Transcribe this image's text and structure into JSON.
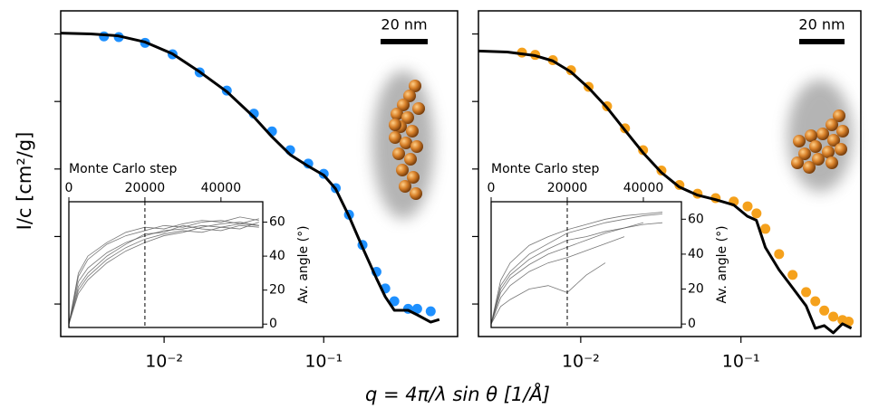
{
  "figure": {
    "xlabel": "q = 4π/λ sin θ  [1/Å]",
    "ylabel": "I/c  [cm²/g]"
  },
  "chart_data": [
    {
      "type": "scatter",
      "xscale": "log",
      "yscale": "log",
      "xlim": [
        0.00225,
        0.69
      ],
      "ylim": [
        3.3e-05,
        2.2
      ],
      "xticks": [
        {
          "value": 0.01,
          "label": "10⁻²"
        },
        {
          "value": 0.1,
          "label": "10⁻¹"
        }
      ],
      "yticks": [
        1,
        0.1,
        0.01,
        0.001,
        0.0001
      ],
      "scale_bar": "20 nm",
      "series": [
        {
          "type": "scatter",
          "color": "#1e90ff",
          "x": [
            0.0042,
            0.0052,
            0.0076,
            0.0113,
            0.0167,
            0.0247,
            0.0365,
            0.0474,
            0.0616,
            0.08,
            0.1,
            0.119,
            0.144,
            0.175,
            0.214,
            0.243,
            0.277,
            0.338,
            0.385,
            0.468
          ],
          "values": [
            0.92,
            0.9,
            0.74,
            0.5,
            0.27,
            0.145,
            0.066,
            0.036,
            0.019,
            0.012,
            0.0085,
            0.0052,
            0.0021,
            0.00075,
            0.0003,
            0.00017,
            0.00011,
            8.5e-05,
            8.5e-05,
            7.8e-05
          ]
        },
        {
          "type": "line",
          "color": "#000000",
          "x": [
            0.00225,
            0.00347,
            0.00513,
            0.0076,
            0.01125,
            0.0167,
            0.0247,
            0.0365,
            0.0474,
            0.0616,
            0.08,
            0.1,
            0.1186,
            0.144,
            0.175,
            0.214,
            0.243,
            0.277,
            0.338,
            0.385,
            0.468,
            0.53
          ],
          "values": [
            1.03,
            1.0,
            0.94,
            0.76,
            0.51,
            0.275,
            0.14,
            0.059,
            0.03,
            0.0163,
            0.011,
            0.0081,
            0.0051,
            0.002,
            0.00069,
            0.00024,
            0.000128,
            8.07e-05,
            8.07e-05,
            6.92e-05,
            5.4e-05,
            5.9e-05
          ]
        }
      ],
      "inset": {
        "type": "line",
        "xlabel": "Monte Carlo step",
        "ylabel": "Av. angle (°)",
        "xlim": [
          0,
          51000
        ],
        "xticks": [
          0,
          20000,
          40000
        ],
        "ylim": [
          -2,
          72
        ],
        "yticks": [
          0,
          20,
          40,
          60
        ],
        "vline": 20000,
        "color": "#555555",
        "x": [
          0,
          2500,
          5000,
          10000,
          15000,
          20000,
          25000,
          30000,
          35000,
          40000,
          45000,
          50000
        ],
        "series": [
          {
            "values": [
              0,
              25,
              33,
              42,
              48,
              52,
              55,
              56,
              58,
              57,
              59,
              58
            ]
          },
          {
            "values": [
              0,
              20,
              28,
              38,
              45,
              50,
              53,
              55,
              54,
              57,
              56,
              60
            ]
          },
          {
            "values": [
              0,
              28,
              38,
              47,
              52,
              55,
              58,
              57,
              60,
              61,
              59,
              62
            ]
          },
          {
            "values": [
              0,
              22,
              30,
              40,
              47,
              53,
              54,
              58,
              56,
              55,
              58,
              57
            ]
          },
          {
            "values": [
              0,
              18,
              26,
              36,
              43,
              48,
              52,
              54,
              57,
              59,
              60,
              58
            ]
          },
          {
            "values": [
              0,
              30,
              40,
              48,
              54,
              57,
              56,
              59,
              61,
              60,
              63,
              61
            ]
          }
        ]
      }
    },
    {
      "type": "scatter",
      "xscale": "log",
      "yscale": "log",
      "xlim": [
        0.0023,
        0.56
      ],
      "ylim": [
        3.3e-05,
        2.2
      ],
      "xticks": [
        {
          "value": 0.01,
          "label": "10⁻²"
        },
        {
          "value": 0.1,
          "label": "10⁻¹"
        }
      ],
      "yticks": [
        1,
        0.1,
        0.01,
        0.001,
        0.0001
      ],
      "scale_bar": "20 nm",
      "series": [
        {
          "type": "scatter",
          "color": "#f5a11c",
          "x": [
            0.0043,
            0.0052,
            0.0067,
            0.0087,
            0.0112,
            0.0146,
            0.0189,
            0.0245,
            0.0319,
            0.0413,
            0.0536,
            0.0695,
            0.0902,
            0.11,
            0.125,
            0.142,
            0.173,
            0.21,
            0.255,
            0.291,
            0.331,
            0.377,
            0.43,
            0.47
          ],
          "values": [
            0.53,
            0.49,
            0.41,
            0.29,
            0.165,
            0.085,
            0.04,
            0.019,
            0.0095,
            0.0058,
            0.0043,
            0.0037,
            0.0033,
            0.0028,
            0.0022,
            0.0013,
            0.00055,
            0.00027,
            0.00015,
            0.00011,
            8e-05,
            6.5e-05,
            5.8e-05,
            5.5e-05
          ]
        },
        {
          "type": "line",
          "color": "#000000",
          "x": [
            0.0023,
            0.00348,
            0.00515,
            0.00668,
            0.00867,
            0.01124,
            0.0146,
            0.0189,
            0.0245,
            0.0319,
            0.0413,
            0.0536,
            0.0695,
            0.0902,
            0.1096,
            0.1248,
            0.142,
            0.173,
            0.21,
            0.255,
            0.291,
            0.331,
            0.377,
            0.43,
            0.489
          ],
          "values": [
            0.56,
            0.54,
            0.48,
            0.4,
            0.275,
            0.158,
            0.081,
            0.0374,
            0.0174,
            0.00885,
            0.0054,
            0.0041,
            0.00352,
            0.00293,
            0.002,
            0.00174,
            0.00069,
            0.00032,
            0.000174,
            9.4e-05,
            4.37e-05,
            4.79e-05,
            3.74e-05,
            5.09e-05,
            4.37e-05
          ]
        }
      ],
      "inset": {
        "type": "line",
        "xlabel": "Monte Carlo step",
        "ylabel": "Av. angle (°)",
        "xlim": [
          0,
          50000
        ],
        "xticks": [
          0,
          20000,
          40000
        ],
        "ylim": [
          -2,
          70
        ],
        "yticks": [
          0,
          20,
          40,
          60
        ],
        "vline": 20000,
        "color": "#555555",
        "x": [
          0,
          2500,
          5000,
          10000,
          15000,
          20000,
          25000,
          30000,
          35000,
          40000,
          45000
        ],
        "series": [
          {
            "values": [
              0,
              22,
              30,
              40,
              46,
              52,
              55,
              58,
              60,
              62,
              63
            ]
          },
          {
            "values": [
              0,
              18,
              26,
              34,
              40,
              44,
              48,
              52,
              55,
              58,
              null
            ]
          },
          {
            "values": [
              0,
              25,
              35,
              45,
              50,
              54,
              57,
              60,
              62,
              63,
              64
            ]
          },
          {
            "values": [
              0,
              15,
              22,
              30,
              35,
              38,
              42,
              46,
              50,
              null,
              null
            ]
          },
          {
            "values": [
              0,
              20,
              28,
              37,
              43,
              48,
              50,
              53,
              55,
              57,
              58
            ]
          },
          {
            "values": [
              0,
              10,
              14,
              20,
              22,
              18,
              28,
              35,
              null,
              null,
              null
            ]
          }
        ]
      }
    }
  ]
}
